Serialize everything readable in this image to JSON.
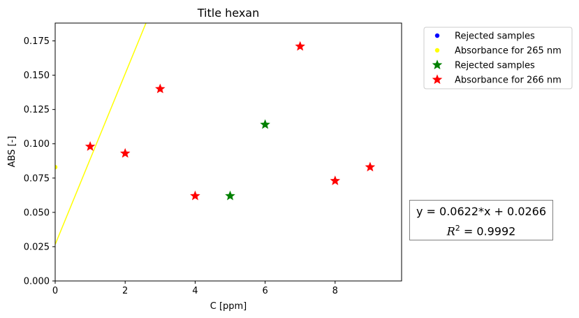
{
  "chart_data": {
    "type": "scatter",
    "title": "Title hexan",
    "xlabel": "C [ppm]",
    "ylabel": "ABS [-]",
    "xlim": [
      0,
      9.9
    ],
    "ylim": [
      0,
      0.188
    ],
    "xticks": [
      "0",
      "2",
      "4",
      "6",
      "8"
    ],
    "xtick_values": [
      0,
      2,
      4,
      6,
      8
    ],
    "yticks": [
      "0.000",
      "0.025",
      "0.050",
      "0.075",
      "0.100",
      "0.125",
      "0.150",
      "0.175"
    ],
    "ytick_values": [
      0,
      0.025,
      0.05,
      0.075,
      0.1,
      0.125,
      0.15,
      0.175
    ],
    "grid": false,
    "legend_position": "outside-right-top",
    "series": [
      {
        "name": "Rejected samples",
        "marker": "circle",
        "color": "#0000ff",
        "x": [],
        "y": []
      },
      {
        "name": "Absorbance for 265 nm",
        "marker": "circle",
        "color": "#ffff00",
        "x": [
          0
        ],
        "y": [
          0.083
        ]
      },
      {
        "name": "Rejected samples",
        "marker": "star",
        "color": "#008000",
        "x": [
          5,
          6
        ],
        "y": [
          0.062,
          0.114
        ]
      },
      {
        "name": "Absorbance for 266 nm",
        "marker": "star",
        "color": "#ff0000",
        "x": [
          1,
          2,
          3,
          4,
          7,
          8,
          9
        ],
        "y": [
          0.098,
          0.093,
          0.14,
          0.062,
          0.171,
          0.073,
          0.083
        ]
      }
    ],
    "fit_line": {
      "slope": 0.0622,
      "intercept": 0.0266,
      "color": "#ffff00"
    },
    "annotation": {
      "equation": "y = 0.0622*x + 0.0266",
      "r2_value": "= 0.9992"
    }
  }
}
